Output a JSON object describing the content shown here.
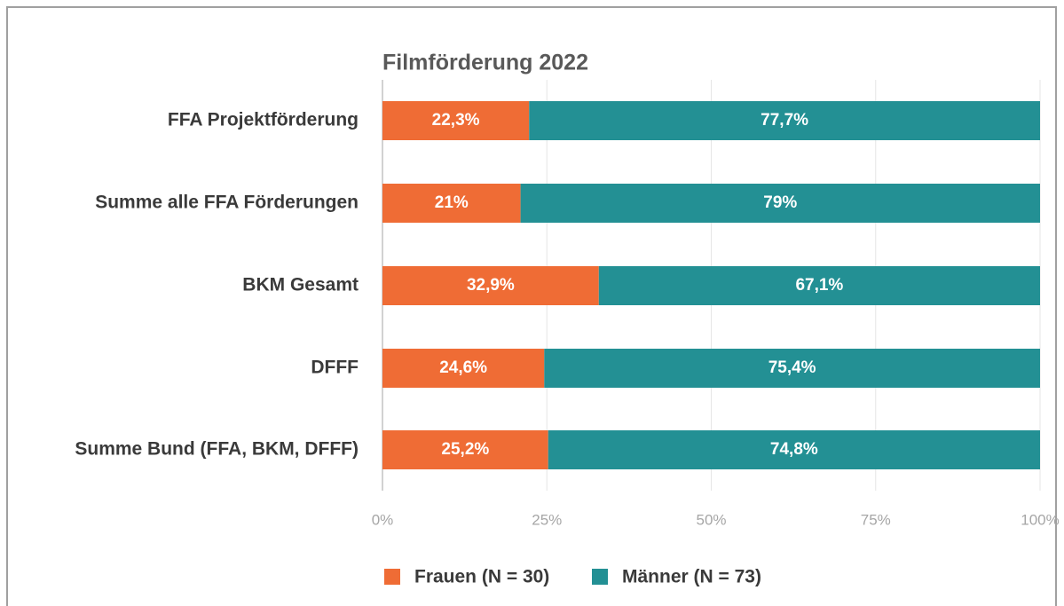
{
  "chart_data": {
    "type": "stacked-bar-horizontal",
    "title": "Filmförderung 2022",
    "categories": [
      "FFA Projektförderung",
      "Summe alle FFA Förderungen",
      "BKM Gesamt",
      "DFFF",
      "Summe Bund (FFA, BKM, DFFF)"
    ],
    "series": [
      {
        "name": "Frauen (N = 30)",
        "color": "#ef6c35",
        "values": [
          22.3,
          21,
          32.9,
          24.6,
          25.2
        ],
        "value_labels": [
          "22,3%",
          "21%",
          "32,9%",
          "24,6%",
          "25,2%"
        ]
      },
      {
        "name": "Männer (N = 73)",
        "color": "#239094",
        "values": [
          77.7,
          79,
          67.1,
          75.4,
          74.8
        ],
        "value_labels": [
          "77,7%",
          "79%",
          "67,1%",
          "75,4%",
          "74,8%"
        ]
      }
    ],
    "xlim": [
      0,
      100
    ],
    "xticks": [
      {
        "value": 0,
        "label": "0%"
      },
      {
        "value": 25,
        "label": "25%"
      },
      {
        "value": 50,
        "label": "50%"
      },
      {
        "value": 75,
        "label": "75%"
      },
      {
        "value": 100,
        "label": "100%"
      }
    ],
    "grid": true,
    "legend": "bottom"
  }
}
